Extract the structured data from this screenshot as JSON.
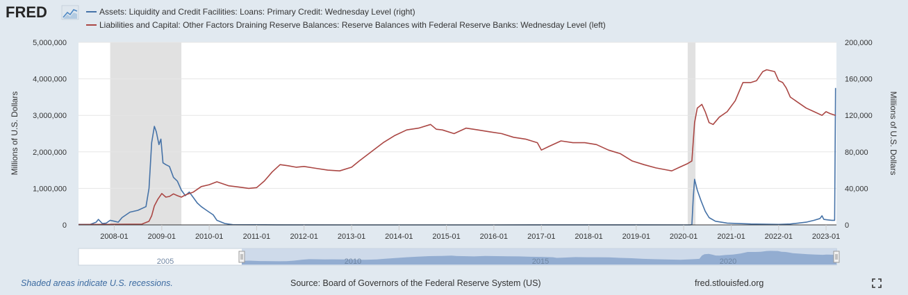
{
  "logo": {
    "text": "FRED",
    "icon": "line-chart-icon"
  },
  "legend": [
    {
      "label": "Assets: Liquidity and Credit Facilities: Loans: Primary Credit: Wednesday Level (right)",
      "color": "#4572a7"
    },
    {
      "label": "Liabilities and Capital: Other Factors Draining Reserve Balances: Reserve Balances with Federal Reserve Banks: Wednesday Level (left)",
      "color": "#aa4643"
    }
  ],
  "footer": {
    "note": "Shaded areas indicate U.S. recessions.",
    "source": "Source: Board of Governors of the Federal Reserve System (US)",
    "site": "fred.stlouisfed.org",
    "fullscreen_icon": "fullscreen-icon"
  },
  "navigator": {
    "labels": [
      "2005",
      "2010",
      "2015",
      "2020"
    ]
  },
  "chart_data": {
    "type": "line",
    "xlabel": "",
    "ylabel_left": "Millions of U.S. Dollars",
    "ylabel_right": "Millions of U.S. Dollars",
    "x_range": [
      "2007-04-01",
      "2023-03-22"
    ],
    "ylim_left": [
      0,
      5000000
    ],
    "ylim_right": [
      0,
      200000
    ],
    "yticks_left": [
      "0",
      "1,000,000",
      "2,000,000",
      "3,000,000",
      "4,000,000",
      "5,000,000"
    ],
    "yticks_right": [
      "0",
      "40,000",
      "80,000",
      "120,000",
      "160,000",
      "200,000"
    ],
    "xticks": [
      {
        "label": "2008-01",
        "date": "2008-01-01"
      },
      {
        "label": "2009-01",
        "date": "2009-01-01"
      },
      {
        "label": "2010-01",
        "date": "2010-01-01"
      },
      {
        "label": "2011-01",
        "date": "2011-01-01"
      },
      {
        "label": "2012-01",
        "date": "2012-01-01"
      },
      {
        "label": "2013-01",
        "date": "2013-01-01"
      },
      {
        "label": "2014-01",
        "date": "2014-01-01"
      },
      {
        "label": "2015-01",
        "date": "2015-01-01"
      },
      {
        "label": "2016-01",
        "date": "2016-01-01"
      },
      {
        "label": "2017-01",
        "date": "2017-01-01"
      },
      {
        "label": "2018-01",
        "date": "2018-01-01"
      },
      {
        "label": "2019-01",
        "date": "2019-01-01"
      },
      {
        "label": "2020-01",
        "date": "2020-01-01"
      },
      {
        "label": "2021-01",
        "date": "2021-01-01"
      },
      {
        "label": "2022-01",
        "date": "2022-01-01"
      },
      {
        "label": "2023-01",
        "date": "2023-01-01"
      }
    ],
    "recessions": [
      {
        "start": "2007-12-01",
        "end": "2009-06-01"
      },
      {
        "start": "2020-02-01",
        "end": "2020-04-01"
      }
    ],
    "grid": true,
    "legend_position": "top",
    "series": [
      {
        "name": "Assets: Liquidity and Credit Facilities: Loans: Primary Credit: Wednesday Level (right)",
        "axis": "right",
        "color": "#4572a7",
        "points": [
          [
            "2007-04-01",
            500
          ],
          [
            "2007-07-01",
            500
          ],
          [
            "2007-08-15",
            3000
          ],
          [
            "2007-09-01",
            6000
          ],
          [
            "2007-10-01",
            1500
          ],
          [
            "2007-11-01",
            2000
          ],
          [
            "2007-12-01",
            5000
          ],
          [
            "2008-01-01",
            4000
          ],
          [
            "2008-02-01",
            3000
          ],
          [
            "2008-03-01",
            8000
          ],
          [
            "2008-05-01",
            14000
          ],
          [
            "2008-07-01",
            16000
          ],
          [
            "2008-09-01",
            20000
          ],
          [
            "2008-09-25",
            40000
          ],
          [
            "2008-10-15",
            90000
          ],
          [
            "2008-11-05",
            108000
          ],
          [
            "2008-11-20",
            102000
          ],
          [
            "2008-12-10",
            88000
          ],
          [
            "2008-12-25",
            94000
          ],
          [
            "2009-01-10",
            68000
          ],
          [
            "2009-02-01",
            66000
          ],
          [
            "2009-03-01",
            64000
          ],
          [
            "2009-04-01",
            52000
          ],
          [
            "2009-05-01",
            48000
          ],
          [
            "2009-06-01",
            38000
          ],
          [
            "2009-07-01",
            32000
          ],
          [
            "2009-08-01",
            36000
          ],
          [
            "2009-09-01",
            30000
          ],
          [
            "2009-10-01",
            24000
          ],
          [
            "2009-11-01",
            20000
          ],
          [
            "2009-12-01",
            17000
          ],
          [
            "2010-01-01",
            14000
          ],
          [
            "2010-02-01",
            11000
          ],
          [
            "2010-03-01",
            5000
          ],
          [
            "2010-05-01",
            1500
          ],
          [
            "2010-07-01",
            200
          ],
          [
            "2011-06-01",
            50
          ],
          [
            "2013-01-01",
            20
          ],
          [
            "2016-01-01",
            30
          ],
          [
            "2019-01-01",
            40
          ],
          [
            "2020-02-15",
            30
          ],
          [
            "2020-03-04",
            200
          ],
          [
            "2020-03-15",
            30000
          ],
          [
            "2020-03-25",
            50000
          ],
          [
            "2020-04-15",
            38000
          ],
          [
            "2020-05-15",
            26000
          ],
          [
            "2020-06-15",
            15000
          ],
          [
            "2020-07-15",
            8000
          ],
          [
            "2020-09-01",
            4000
          ],
          [
            "2020-12-01",
            2000
          ],
          [
            "2021-06-01",
            1000
          ],
          [
            "2022-01-01",
            500
          ],
          [
            "2022-04-01",
            1000
          ],
          [
            "2022-06-01",
            2000
          ],
          [
            "2022-08-01",
            3000
          ],
          [
            "2022-10-01",
            5000
          ],
          [
            "2022-11-15",
            7000
          ],
          [
            "2022-12-01",
            10000
          ],
          [
            "2022-12-15",
            6000
          ],
          [
            "2023-01-15",
            5500
          ],
          [
            "2023-02-15",
            5000
          ],
          [
            "2023-03-08",
            5000
          ],
          [
            "2023-03-15",
            150000
          ]
        ]
      },
      {
        "name": "Liabilities and Capital: Other Factors Draining Reserve Balances: Reserve Balances with Federal Reserve Banks: Wednesday Level (left)",
        "axis": "left",
        "color": "#aa4643",
        "points": [
          [
            "2007-04-01",
            10000
          ],
          [
            "2008-01-01",
            15000
          ],
          [
            "2008-08-01",
            20000
          ],
          [
            "2008-09-25",
            100000
          ],
          [
            "2008-10-15",
            250000
          ],
          [
            "2008-11-05",
            520000
          ],
          [
            "2008-12-01",
            700000
          ],
          [
            "2009-01-01",
            860000
          ],
          [
            "2009-02-01",
            760000
          ],
          [
            "2009-03-01",
            780000
          ],
          [
            "2009-04-01",
            850000
          ],
          [
            "2009-05-01",
            800000
          ],
          [
            "2009-06-01",
            760000
          ],
          [
            "2009-07-01",
            820000
          ],
          [
            "2009-09-01",
            900000
          ],
          [
            "2009-11-01",
            1050000
          ],
          [
            "2010-01-01",
            1100000
          ],
          [
            "2010-03-01",
            1180000
          ],
          [
            "2010-06-01",
            1070000
          ],
          [
            "2010-09-01",
            1030000
          ],
          [
            "2010-11-01",
            1000000
          ],
          [
            "2011-01-01",
            1020000
          ],
          [
            "2011-03-01",
            1200000
          ],
          [
            "2011-05-01",
            1450000
          ],
          [
            "2011-07-01",
            1650000
          ],
          [
            "2011-09-01",
            1620000
          ],
          [
            "2011-11-01",
            1580000
          ],
          [
            "2012-01-01",
            1600000
          ],
          [
            "2012-04-01",
            1550000
          ],
          [
            "2012-07-01",
            1500000
          ],
          [
            "2012-10-01",
            1480000
          ],
          [
            "2013-01-01",
            1580000
          ],
          [
            "2013-03-01",
            1750000
          ],
          [
            "2013-06-01",
            2000000
          ],
          [
            "2013-09-01",
            2250000
          ],
          [
            "2013-12-01",
            2450000
          ],
          [
            "2014-03-01",
            2600000
          ],
          [
            "2014-06-01",
            2650000
          ],
          [
            "2014-09-01",
            2750000
          ],
          [
            "2014-10-15",
            2620000
          ],
          [
            "2014-12-01",
            2600000
          ],
          [
            "2015-03-01",
            2500000
          ],
          [
            "2015-06-01",
            2650000
          ],
          [
            "2015-09-01",
            2600000
          ],
          [
            "2015-12-01",
            2550000
          ],
          [
            "2016-03-01",
            2500000
          ],
          [
            "2016-06-01",
            2400000
          ],
          [
            "2016-09-01",
            2350000
          ],
          [
            "2016-12-01",
            2250000
          ],
          [
            "2017-01-01",
            2050000
          ],
          [
            "2017-03-01",
            2150000
          ],
          [
            "2017-06-01",
            2300000
          ],
          [
            "2017-09-01",
            2250000
          ],
          [
            "2017-12-01",
            2250000
          ],
          [
            "2018-03-01",
            2200000
          ],
          [
            "2018-06-01",
            2050000
          ],
          [
            "2018-09-01",
            1950000
          ],
          [
            "2018-12-01",
            1750000
          ],
          [
            "2019-03-01",
            1650000
          ],
          [
            "2019-06-01",
            1560000
          ],
          [
            "2019-09-01",
            1500000
          ],
          [
            "2019-10-01",
            1480000
          ],
          [
            "2019-12-01",
            1580000
          ],
          [
            "2020-02-01",
            1680000
          ],
          [
            "2020-03-04",
            1750000
          ],
          [
            "2020-03-25",
            2800000
          ],
          [
            "2020-04-15",
            3200000
          ],
          [
            "2020-05-20",
            3300000
          ],
          [
            "2020-06-15",
            3100000
          ],
          [
            "2020-07-15",
            2800000
          ],
          [
            "2020-08-15",
            2750000
          ],
          [
            "2020-10-01",
            2950000
          ],
          [
            "2020-12-01",
            3100000
          ],
          [
            "2021-02-01",
            3400000
          ],
          [
            "2021-04-01",
            3900000
          ],
          [
            "2021-06-01",
            3900000
          ],
          [
            "2021-07-15",
            3950000
          ],
          [
            "2021-09-01",
            4200000
          ],
          [
            "2021-10-01",
            4250000
          ],
          [
            "2021-12-01",
            4200000
          ],
          [
            "2022-01-01",
            3950000
          ],
          [
            "2022-02-01",
            3900000
          ],
          [
            "2022-03-01",
            3750000
          ],
          [
            "2022-04-01",
            3500000
          ],
          [
            "2022-06-01",
            3350000
          ],
          [
            "2022-08-01",
            3200000
          ],
          [
            "2022-10-01",
            3100000
          ],
          [
            "2022-12-01",
            3000000
          ],
          [
            "2023-01-01",
            3100000
          ],
          [
            "2023-02-01",
            3050000
          ],
          [
            "2023-03-15",
            3000000
          ]
        ]
      }
    ]
  }
}
